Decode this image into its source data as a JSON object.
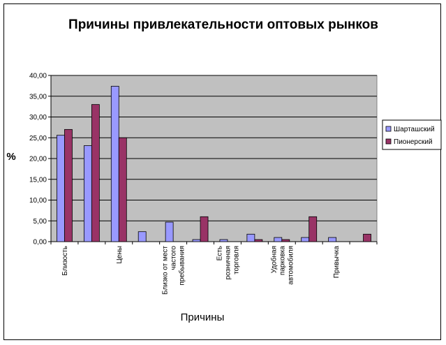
{
  "chart_data": {
    "type": "bar",
    "title": "Причины привлекательности оптовых рынков",
    "xlabel": "Причины",
    "ylabel": "%",
    "ylim": [
      0,
      40
    ],
    "yticks": [
      "0,00",
      "5,00",
      "10,00",
      "15,00",
      "20,00",
      "25,00",
      "30,00",
      "35,00",
      "40,00"
    ],
    "grid": true,
    "legend_position": "right",
    "categories": [
      [
        "Близость"
      ],
      [
        ""
      ],
      [
        "Цены"
      ],
      [
        ""
      ],
      [
        "Близко от мест",
        "частого",
        "пребывания"
      ],
      [
        ""
      ],
      [
        "Есть",
        "розничная",
        "торговля"
      ],
      [
        ""
      ],
      [
        "Удобная",
        "парковка",
        "автомобиля"
      ],
      [
        ""
      ],
      [
        "Привычка"
      ],
      [
        ""
      ]
    ],
    "series": [
      {
        "name": "Шарташский",
        "color": "#9999ff",
        "values": [
          25.6,
          23.1,
          37.4,
          2.4,
          4.7,
          0.5,
          0.5,
          1.8,
          1.0,
          1.0,
          1.0,
          0.0
        ]
      },
      {
        "name": "Пионерский",
        "color": "#993366",
        "values": [
          27.0,
          33.0,
          25.0,
          0.0,
          0.0,
          6.0,
          0.0,
          0.5,
          0.5,
          6.0,
          0.0,
          1.8
        ]
      }
    ],
    "plot_background": "#c0c0c0"
  }
}
